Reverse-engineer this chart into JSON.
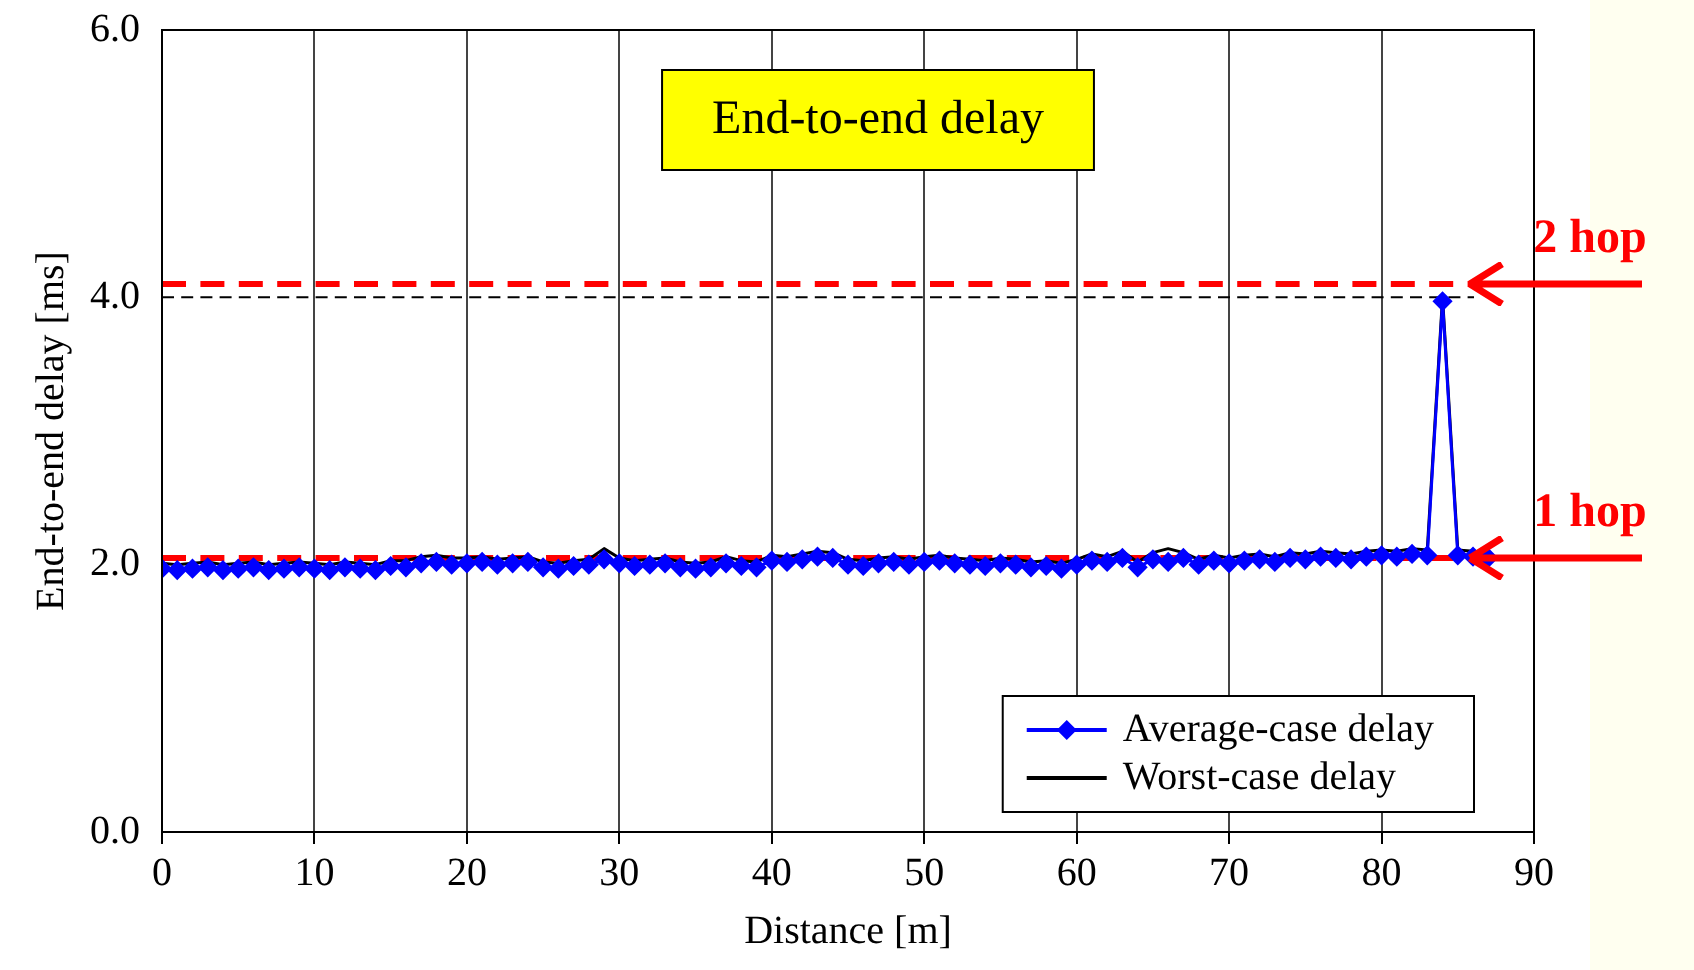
{
  "chart_data": {
    "type": "line",
    "title": "End-to-end delay",
    "xlabel": "Distance [m]",
    "ylabel": "End-to-end delay [ms]",
    "x": [
      0,
      1,
      2,
      3,
      4,
      5,
      6,
      7,
      8,
      9,
      10,
      11,
      12,
      13,
      14,
      15,
      16,
      17,
      18,
      19,
      20,
      21,
      22,
      23,
      24,
      25,
      26,
      27,
      28,
      29,
      30,
      31,
      32,
      33,
      34,
      35,
      36,
      37,
      38,
      39,
      40,
      41,
      42,
      43,
      44,
      45,
      46,
      47,
      48,
      49,
      50,
      51,
      52,
      53,
      54,
      55,
      56,
      57,
      58,
      59,
      60,
      61,
      62,
      63,
      64,
      65,
      66,
      67,
      68,
      69,
      70,
      71,
      72,
      73,
      74,
      75,
      76,
      77,
      78,
      79,
      80,
      81,
      82,
      83,
      84,
      85,
      86,
      87
    ],
    "series": [
      {
        "name": "Average-case delay",
        "color": "#0000ff",
        "marker": "diamond",
        "values": [
          1.97,
          1.96,
          1.97,
          1.98,
          1.96,
          1.97,
          1.98,
          1.96,
          1.97,
          1.98,
          1.97,
          1.96,
          1.98,
          1.97,
          1.96,
          1.99,
          1.98,
          2.01,
          2.02,
          2.0,
          2.01,
          2.02,
          2.0,
          2.01,
          2.02,
          1.98,
          1.97,
          1.99,
          2.0,
          2.04,
          2.01,
          1.99,
          2.0,
          2.01,
          1.98,
          1.97,
          1.98,
          2.01,
          1.99,
          1.98,
          2.03,
          2.02,
          2.04,
          2.06,
          2.05,
          2.0,
          1.99,
          2.01,
          2.02,
          2.0,
          2.02,
          2.03,
          2.01,
          2.0,
          1.99,
          2.01,
          2.0,
          1.98,
          1.99,
          1.97,
          2.0,
          2.03,
          2.02,
          2.05,
          1.98,
          2.04,
          2.02,
          2.05,
          2.0,
          2.03,
          2.01,
          2.03,
          2.04,
          2.02,
          2.05,
          2.04,
          2.06,
          2.05,
          2.04,
          2.06,
          2.07,
          2.06,
          2.08,
          2.07,
          3.97,
          2.07,
          2.06,
          2.05
        ]
      },
      {
        "name": "Worst-case delay",
        "color": "#000000",
        "marker": "none",
        "values": [
          2.01,
          2.0,
          2.01,
          2.02,
          2.0,
          2.01,
          2.02,
          2.0,
          2.01,
          2.02,
          2.01,
          2.0,
          2.02,
          2.01,
          2.0,
          2.03,
          2.03,
          2.06,
          2.07,
          2.05,
          2.05,
          2.06,
          2.04,
          2.05,
          2.06,
          2.02,
          2.01,
          2.03,
          2.04,
          2.12,
          2.05,
          2.03,
          2.04,
          2.05,
          2.02,
          2.01,
          2.02,
          2.06,
          2.03,
          2.02,
          2.07,
          2.06,
          2.08,
          2.1,
          2.09,
          2.04,
          2.03,
          2.05,
          2.06,
          2.04,
          2.06,
          2.07,
          2.05,
          2.04,
          2.03,
          2.05,
          2.04,
          2.02,
          2.03,
          2.01,
          2.04,
          2.08,
          2.06,
          2.1,
          2.02,
          2.09,
          2.12,
          2.09,
          2.04,
          2.07,
          2.05,
          2.07,
          2.08,
          2.06,
          2.09,
          2.08,
          2.1,
          2.09,
          2.08,
          2.1,
          2.11,
          2.1,
          2.12,
          2.11,
          4.0,
          2.11,
          2.1,
          null
        ]
      }
    ],
    "xlim": [
      0,
      90
    ],
    "xticks": [
      0,
      10,
      20,
      30,
      40,
      50,
      60,
      70,
      80,
      90
    ],
    "ylim": [
      0,
      6
    ],
    "yticks": [
      {
        "value": 0,
        "label": "0.0"
      },
      {
        "value": 2,
        "label": "2.0"
      },
      {
        "value": 4,
        "label": "4.0"
      },
      {
        "value": 6,
        "label": "6.0"
      }
    ],
    "grid": "x",
    "legend": "bottom right",
    "line_style": "solid",
    "ref_lines": [
      {
        "axis": "y",
        "value": 4.1,
        "label": "2 hop",
        "color": "#ff0000",
        "line_style": "dashed"
      },
      {
        "axis": "y",
        "value": 2.05,
        "label": "1 hop",
        "color": "#ff0000",
        "line_style": "dashed"
      },
      {
        "axis": "y",
        "value": 4.0,
        "color": "#000000",
        "line_style": "dashed"
      }
    ]
  }
}
